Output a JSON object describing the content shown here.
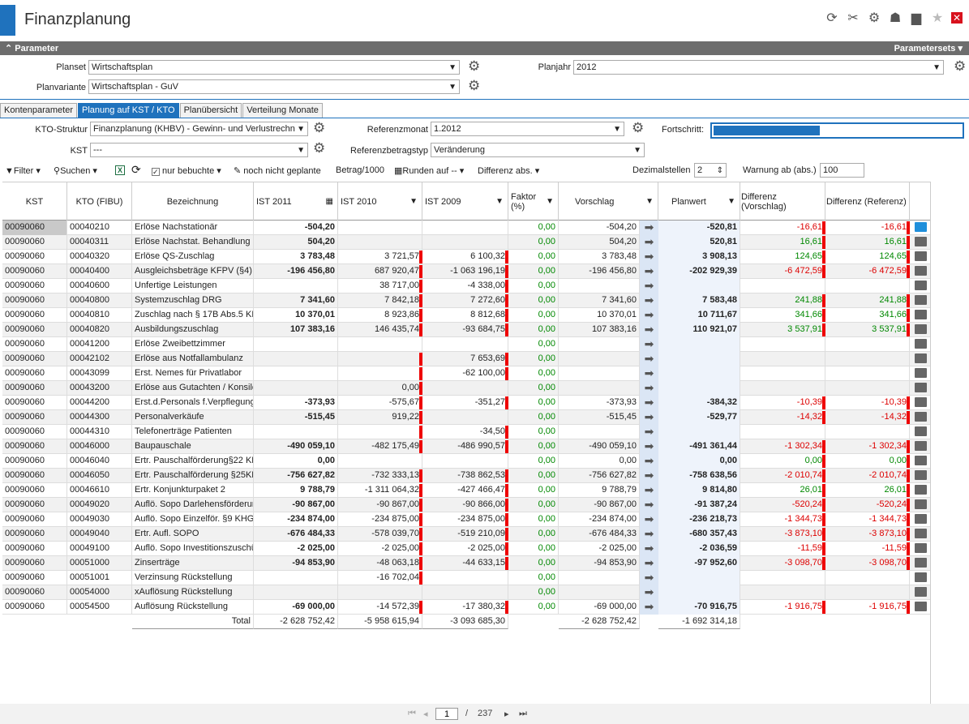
{
  "window": {
    "title": "Finanzplanung"
  },
  "title_icons": [
    "refresh-icon",
    "tools-icon",
    "gear-icon",
    "user-icon",
    "chat-icon",
    "star-icon",
    "close-icon"
  ],
  "param_bar": {
    "label": "Parameter",
    "right": "Parametersets"
  },
  "params": {
    "planset_label": "Planset",
    "planset_value": "Wirtschaftsplan",
    "planvariante_label": "Planvariante",
    "planvariante_value": "Wirtschaftsplan - GuV",
    "planjahr_label": "Planjahr",
    "planjahr_value": "2012"
  },
  "tabs": [
    "Kontenparameter",
    "Planung auf KST / KTO",
    "Planübersicht",
    "Verteilung Monate"
  ],
  "subparams": {
    "kto_label": "KTO-Struktur",
    "kto_value": "Finanzplanung (KHBV) - Gewinn- und Verlustrechn",
    "kst_label": "KST",
    "kst_value": "---",
    "refmonat_label": "Referenzmonat",
    "refmonat_value": "1.2012",
    "reftyp_label": "Referenzbetragstyp",
    "reftyp_value": "Veränderung",
    "fortschritt_label": "Fortschritt:",
    "fortschritt_fraction": 0.43
  },
  "toolbar": {
    "filter": "Filter",
    "suchen": "Suchen",
    "nur_bebuchte": "nur bebuchte",
    "noch_nicht": "noch nicht geplante",
    "betrag": "Betrag/1000",
    "runden": "Runden auf --",
    "differenz": "Differenz abs.",
    "dezimal_label": "Dezimalstellen",
    "dezimal_value": "2",
    "warnung_label": "Warnung ab (abs.)",
    "warnung_value": "100"
  },
  "columns": {
    "kst": "KST",
    "kto": "KTO (FIBU)",
    "bez": "Bezeichnung",
    "ist2011": "IST 2011",
    "ist2010": "IST 2010",
    "ist2009": "IST 2009",
    "faktor": "Faktor (%)",
    "vorschlag": "Vorschlag",
    "planwert": "Planwert",
    "diffv": "Differenz (Vorschlag)",
    "diffr": "Differenz (Referenz)"
  },
  "rows": [
    {
      "kst": "00090060",
      "kto": "00040210",
      "bez": "Erlöse Nachstationär",
      "i11": "-504,20",
      "i10": "",
      "i09": "",
      "f": "0,00",
      "v": "-504,20",
      "p": "-520,81",
      "dv": "-16,61",
      "dr": "-16,61"
    },
    {
      "kst": "00090060",
      "kto": "00040311",
      "bez": "Erlöse Nachstat. Behandlung",
      "i11": "504,20",
      "i10": "",
      "i09": "",
      "f": "0,00",
      "v": "504,20",
      "p": "520,81",
      "dv": "16,61",
      "dr": "16,61"
    },
    {
      "kst": "00090060",
      "kto": "00040320",
      "bez": "Erlöse QS-Zuschlag",
      "i11": "3 783,48",
      "i10": "3 721,57",
      "i09": "6 100,32",
      "f": "0,00",
      "v": "3 783,48",
      "p": "3 908,13",
      "dv": "124,65",
      "dr": "124,65"
    },
    {
      "kst": "00090060",
      "kto": "00040400",
      "bez": "Ausgleichsbeträge KFPV (§4)",
      "i11": "-196 456,80",
      "i10": "687 920,47",
      "i09": "-1 063 196,19",
      "f": "0,00",
      "v": "-196 456,80",
      "p": "-202 929,39",
      "dv": "-6 472,59",
      "dr": "-6 472,59"
    },
    {
      "kst": "00090060",
      "kto": "00040600",
      "bez": "Unfertige Leistungen",
      "i11": "",
      "i10": "38 717,00",
      "i09": "-4 338,00",
      "f": "0,00",
      "v": "",
      "p": "",
      "dv": "",
      "dr": ""
    },
    {
      "kst": "00090060",
      "kto": "00040800",
      "bez": "Systemzuschlag DRG",
      "i11": "7 341,60",
      "i10": "7 842,18",
      "i09": "7 272,60",
      "f": "0,00",
      "v": "7 341,60",
      "p": "7 583,48",
      "dv": "241,88",
      "dr": "241,88"
    },
    {
      "kst": "00090060",
      "kto": "00040810",
      "bez": "Zuschlag nach § 17B Abs.5 KH",
      "i11": "10 370,01",
      "i10": "8 923,86",
      "i09": "8 812,68",
      "f": "0,00",
      "v": "10 370,01",
      "p": "10 711,67",
      "dv": "341,66",
      "dr": "341,66"
    },
    {
      "kst": "00090060",
      "kto": "00040820",
      "bez": "Ausbildungszuschlag",
      "i11": "107 383,16",
      "i10": "146 435,74",
      "i09": "-93 684,75",
      "f": "0,00",
      "v": "107 383,16",
      "p": "110 921,07",
      "dv": "3 537,91",
      "dr": "3 537,91"
    },
    {
      "kst": "00090060",
      "kto": "00041200",
      "bez": "Erlöse Zweibettzimmer",
      "i11": "",
      "i10": "",
      "i09": "",
      "f": "0,00",
      "v": "",
      "p": "",
      "dv": "",
      "dr": ""
    },
    {
      "kst": "00090060",
      "kto": "00042102",
      "bez": "Erlöse aus Notfallambulanz",
      "i11": "",
      "i10": "",
      "i09": "7 653,69",
      "f": "0,00",
      "v": "",
      "p": "",
      "dv": "",
      "dr": ""
    },
    {
      "kst": "00090060",
      "kto": "00043099",
      "bez": "Erst. Nemes für Privatlabor",
      "i11": "",
      "i10": "",
      "i09": "-62 100,00",
      "f": "0,00",
      "v": "",
      "p": "",
      "dv": "",
      "dr": ""
    },
    {
      "kst": "00090060",
      "kto": "00043200",
      "bez": "Erlöse aus Gutachten / Konsile",
      "i11": "",
      "i10": "0,00",
      "i09": "",
      "f": "0,00",
      "v": "",
      "p": "",
      "dv": "",
      "dr": ""
    },
    {
      "kst": "00090060",
      "kto": "00044200",
      "bez": "Erst.d.Personals f.Verpflegung",
      "i11": "-373,93",
      "i10": "-575,67",
      "i09": "-351,27",
      "f": "0,00",
      "v": "-373,93",
      "p": "-384,32",
      "dv": "-10,39",
      "dr": "-10,39"
    },
    {
      "kst": "00090060",
      "kto": "00044300",
      "bez": "Personalverkäufe",
      "i11": "-515,45",
      "i10": "919,22",
      "i09": "",
      "f": "0,00",
      "v": "-515,45",
      "p": "-529,77",
      "dv": "-14,32",
      "dr": "-14,32"
    },
    {
      "kst": "00090060",
      "kto": "00044310",
      "bez": "Telefonerträge Patienten",
      "i11": "",
      "i10": "",
      "i09": "-34,50",
      "f": "0,00",
      "v": "",
      "p": "",
      "dv": "",
      "dr": ""
    },
    {
      "kst": "00090060",
      "kto": "00046000",
      "bez": "Baupauschale",
      "i11": "-490 059,10",
      "i10": "-482 175,49",
      "i09": "-486 990,57",
      "f": "0,00",
      "v": "-490 059,10",
      "p": "-491 361,44",
      "dv": "-1 302,34",
      "dr": "-1 302,34"
    },
    {
      "kst": "00090060",
      "kto": "00046040",
      "bez": "Ertr. Pauschalförderung§22 KH",
      "i11": "0,00",
      "i10": "",
      "i09": "",
      "f": "0,00",
      "v": "0,00",
      "p": "0,00",
      "dv": "0,00",
      "dr": "0,00"
    },
    {
      "kst": "00090060",
      "kto": "00046050",
      "bez": "Ertr. Pauschalförderung §25KH",
      "i11": "-756 627,82",
      "i10": "-732 333,13",
      "i09": "-738 862,53",
      "f": "0,00",
      "v": "-756 627,82",
      "p": "-758 638,56",
      "dv": "-2 010,74",
      "dr": "-2 010,74"
    },
    {
      "kst": "00090060",
      "kto": "00046610",
      "bez": "Ertr. Konjunkturpaket 2",
      "i11": "9 788,79",
      "i10": "-1 311 064,32",
      "i09": "-427 466,47",
      "f": "0,00",
      "v": "9 788,79",
      "p": "9 814,80",
      "dv": "26,01",
      "dr": "26,01"
    },
    {
      "kst": "00090060",
      "kto": "00049020",
      "bez": "Auflö. Sopo Darlehensförderung",
      "i11": "-90 867,00",
      "i10": "-90 867,00",
      "i09": "-90 866,00",
      "f": "0,00",
      "v": "-90 867,00",
      "p": "-91 387,24",
      "dv": "-520,24",
      "dr": "-520,24"
    },
    {
      "kst": "00090060",
      "kto": "00049030",
      "bez": "Auflö. Sopo Einzelför. §9 KHG",
      "i11": "-234 874,00",
      "i10": "-234 875,00",
      "i09": "-234 875,00",
      "f": "0,00",
      "v": "-234 874,00",
      "p": "-236 218,73",
      "dv": "-1 344,73",
      "dr": "-1 344,73"
    },
    {
      "kst": "00090060",
      "kto": "00049040",
      "bez": "Ertr. Aufl. SOPO",
      "i11": "-676 484,33",
      "i10": "-578 039,70",
      "i09": "-519 210,09",
      "f": "0,00",
      "v": "-676 484,33",
      "p": "-680 357,43",
      "dv": "-3 873,10",
      "dr": "-3 873,10"
    },
    {
      "kst": "00090060",
      "kto": "00049100",
      "bez": "Auflö. Sopo Investitionszuschü",
      "i11": "-2 025,00",
      "i10": "-2 025,00",
      "i09": "-2 025,00",
      "f": "0,00",
      "v": "-2 025,00",
      "p": "-2 036,59",
      "dv": "-11,59",
      "dr": "-11,59"
    },
    {
      "kst": "00090060",
      "kto": "00051000",
      "bez": "Zinserträge",
      "i11": "-94 853,90",
      "i10": "-48 063,18",
      "i09": "-44 633,15",
      "f": "0,00",
      "v": "-94 853,90",
      "p": "-97 952,60",
      "dv": "-3 098,70",
      "dr": "-3 098,70"
    },
    {
      "kst": "00090060",
      "kto": "00051001",
      "bez": "Verzinsung Rückstellung",
      "i11": "",
      "i10": "-16 702,04",
      "i09": "",
      "f": "0,00",
      "v": "",
      "p": "",
      "dv": "",
      "dr": ""
    },
    {
      "kst": "00090060",
      "kto": "00054000",
      "bez": "xAuflösung Rückstellung",
      "i11": "",
      "i10": "",
      "i09": "",
      "f": "0,00",
      "v": "",
      "p": "",
      "dv": "",
      "dr": ""
    },
    {
      "kst": "00090060",
      "kto": "00054500",
      "bez": "Auflösung Rückstellung",
      "i11": "-69 000,00",
      "i10": "-14 572,39",
      "i09": "-17 380,32",
      "f": "0,00",
      "v": "-69 000,00",
      "p": "-70 916,75",
      "dv": "-1 916,75",
      "dr": "-1 916,75"
    }
  ],
  "totals": {
    "label": "Total",
    "i11": "-2 628 752,42",
    "i10": "-5 958 615,94",
    "i09": "-3 093 685,30",
    "v": "-2 628 752,42",
    "p": "-1 692 314,18"
  },
  "pager": {
    "page": "1",
    "separator": "/",
    "total_pages": "237"
  }
}
